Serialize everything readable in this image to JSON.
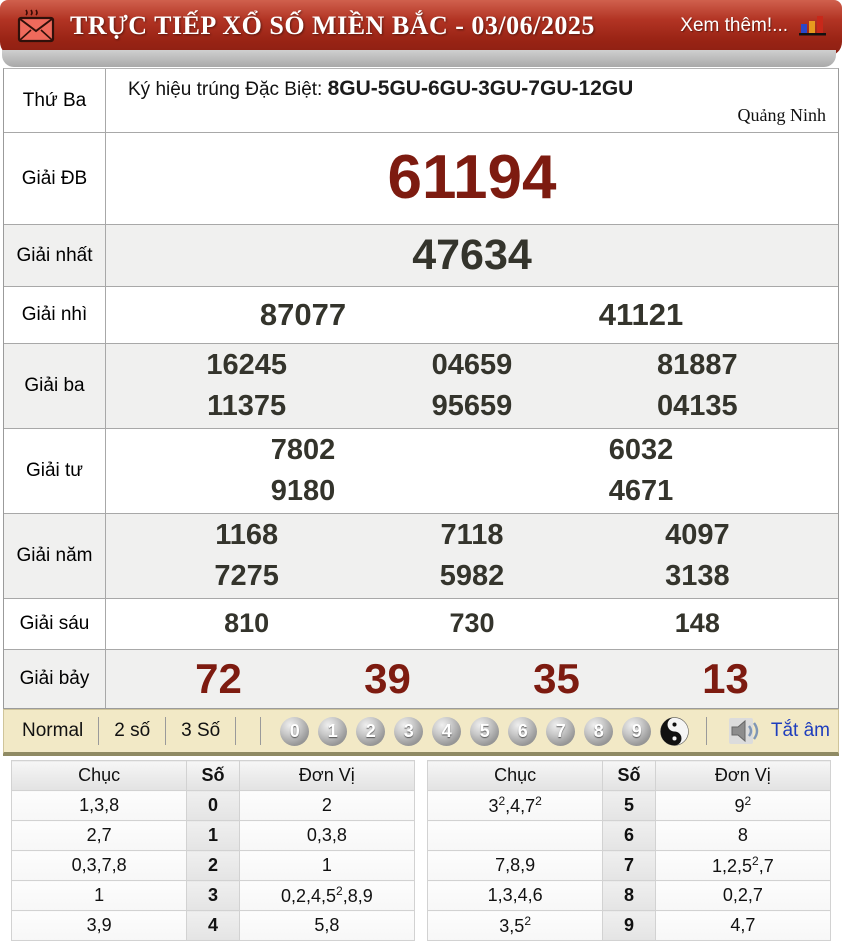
{
  "header": {
    "title": "TRỰC TIẾP XỔ SỐ MIỀN BẮC - 03/06/2025",
    "more_label": "Xem thêm!..."
  },
  "info": {
    "day": "Thứ Ba",
    "symbol_label": "Ký hiệu trúng Đặc Biệt:",
    "symbol_value": "8GU-5GU-6GU-3GU-7GU-12GU",
    "province": "Quảng Ninh"
  },
  "prizes": [
    {
      "label": "Giải ĐB",
      "rows": [
        [
          "61194"
        ]
      ]
    },
    {
      "label": "Giải nhất",
      "rows": [
        [
          "47634"
        ]
      ]
    },
    {
      "label": "Giải nhì",
      "rows": [
        [
          "87077",
          "41121"
        ]
      ]
    },
    {
      "label": "Giải ba",
      "rows": [
        [
          "16245",
          "04659",
          "81887"
        ],
        [
          "11375",
          "95659",
          "04135"
        ]
      ]
    },
    {
      "label": "Giải tư",
      "rows": [
        [
          "7802",
          "6032"
        ],
        [
          "9180",
          "4671"
        ]
      ]
    },
    {
      "label": "Giải năm",
      "rows": [
        [
          "1168",
          "7118",
          "4097"
        ],
        [
          "7275",
          "5982",
          "3138"
        ]
      ]
    },
    {
      "label": "Giải sáu",
      "rows": [
        [
          "810",
          "730",
          "148"
        ]
      ]
    },
    {
      "label": "Giải bảy",
      "rows": [
        [
          "72",
          "39",
          "35",
          "13"
        ]
      ]
    }
  ],
  "toolbar": {
    "modes": [
      "Normal",
      "2 số",
      "3 Số"
    ],
    "digits": [
      "0",
      "1",
      "2",
      "3",
      "4",
      "5",
      "6",
      "7",
      "8",
      "9"
    ],
    "yinyang_icon": "yin-yang",
    "speaker_icon": "speaker",
    "mute_label": "Tắt âm"
  },
  "digit_table": {
    "headers": [
      "Chục",
      "Số",
      "Đơn Vị"
    ],
    "left_rows": [
      [
        "1,3,8",
        "0",
        "2"
      ],
      [
        "2,7",
        "1",
        "0,3,8"
      ],
      [
        "0,3,7,8",
        "2",
        "1"
      ],
      [
        "1",
        "3",
        "0,2,4,5²,8,9"
      ],
      [
        "3,9",
        "4",
        "5,8"
      ]
    ],
    "right_rows": [
      [
        "3²,4,7²",
        "5",
        "9²"
      ],
      [
        "",
        "6",
        "8"
      ],
      [
        "7,8,9",
        "7",
        "1,2,5²,7"
      ],
      [
        "1,3,4,6",
        "8",
        "0,2,7"
      ],
      [
        "3,5²",
        "9",
        "4,7"
      ]
    ]
  },
  "colors": {
    "header_red": "#9a2415",
    "accent_dark_red": "#7d1b10",
    "toolbar_beige": "#f2e9c6",
    "link_blue": "#1f3ebd"
  }
}
